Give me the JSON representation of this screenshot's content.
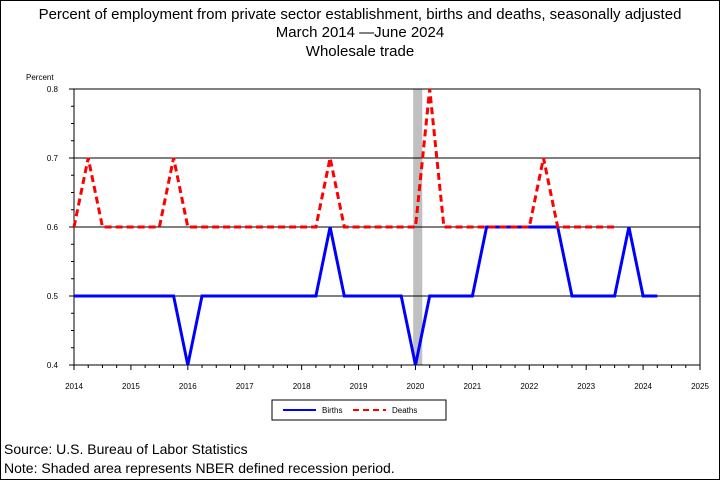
{
  "title": {
    "line1": "Percent of employment from private sector establishment, births and deaths, seasonally adjusted",
    "line2": "March 2014 —June 2024",
    "line3": "Wholesale trade"
  },
  "footer": {
    "source": "Source: U.S. Bureau of Labor Statistics",
    "note": "Note: Shaded area represents NBER defined recession period."
  },
  "chart_data": {
    "type": "line",
    "title": "Percent of employment from private sector establishment, births and deaths, seasonally adjusted",
    "subtitle": "March 2014 —June 2024",
    "panel_title": "Wholesale trade",
    "ylabel": "Percent",
    "xlabel": "",
    "xlim": [
      2014,
      2025
    ],
    "ylim": [
      0.4,
      0.8
    ],
    "y_ticks": [
      "0.4",
      "0.5",
      "0.6",
      "0.7",
      "0.8"
    ],
    "x_ticks": [
      "2014",
      "2015",
      "2016",
      "2017",
      "2018",
      "2019",
      "2020",
      "2021",
      "2022",
      "2023",
      "2024",
      "2025"
    ],
    "grid": "horizontal",
    "legend_position": "bottom-center",
    "recession_shading": {
      "start": 2019.96,
      "end": 2020.12,
      "color": "#c0c0c0"
    },
    "series": [
      {
        "name": "Births",
        "color": "#0000ff",
        "style": "solid",
        "points": [
          {
            "x": 2014.0,
            "y": 0.5
          },
          {
            "x": 2015.75,
            "y": 0.5
          },
          {
            "x": 2016.0,
            "y": 0.4
          },
          {
            "x": 2016.25,
            "y": 0.5
          },
          {
            "x": 2018.25,
            "y": 0.5
          },
          {
            "x": 2018.5,
            "y": 0.6
          },
          {
            "x": 2018.75,
            "y": 0.5
          },
          {
            "x": 2019.75,
            "y": 0.5
          },
          {
            "x": 2020.0,
            "y": 0.4
          },
          {
            "x": 2020.25,
            "y": 0.5
          },
          {
            "x": 2021.0,
            "y": 0.5
          },
          {
            "x": 2021.25,
            "y": 0.6
          },
          {
            "x": 2022.5,
            "y": 0.6
          },
          {
            "x": 2022.75,
            "y": 0.5
          },
          {
            "x": 2023.5,
            "y": 0.5
          },
          {
            "x": 2023.75,
            "y": 0.6
          },
          {
            "x": 2024.0,
            "y": 0.5
          },
          {
            "x": 2024.25,
            "y": 0.5
          }
        ]
      },
      {
        "name": "Deaths",
        "color": "#ff0000",
        "style": "dashed",
        "points": [
          {
            "x": 2014.0,
            "y": 0.6
          },
          {
            "x": 2014.25,
            "y": 0.7
          },
          {
            "x": 2014.5,
            "y": 0.6
          },
          {
            "x": 2015.5,
            "y": 0.6
          },
          {
            "x": 2015.75,
            "y": 0.7
          },
          {
            "x": 2016.0,
            "y": 0.6
          },
          {
            "x": 2018.25,
            "y": 0.6
          },
          {
            "x": 2018.5,
            "y": 0.7
          },
          {
            "x": 2018.75,
            "y": 0.6
          },
          {
            "x": 2020.0,
            "y": 0.6
          },
          {
            "x": 2020.25,
            "y": 0.8
          },
          {
            "x": 2020.5,
            "y": 0.6
          },
          {
            "x": 2022.0,
            "y": 0.6
          },
          {
            "x": 2022.25,
            "y": 0.7
          },
          {
            "x": 2022.5,
            "y": 0.6
          },
          {
            "x": 2023.5,
            "y": 0.6
          }
        ]
      }
    ]
  }
}
